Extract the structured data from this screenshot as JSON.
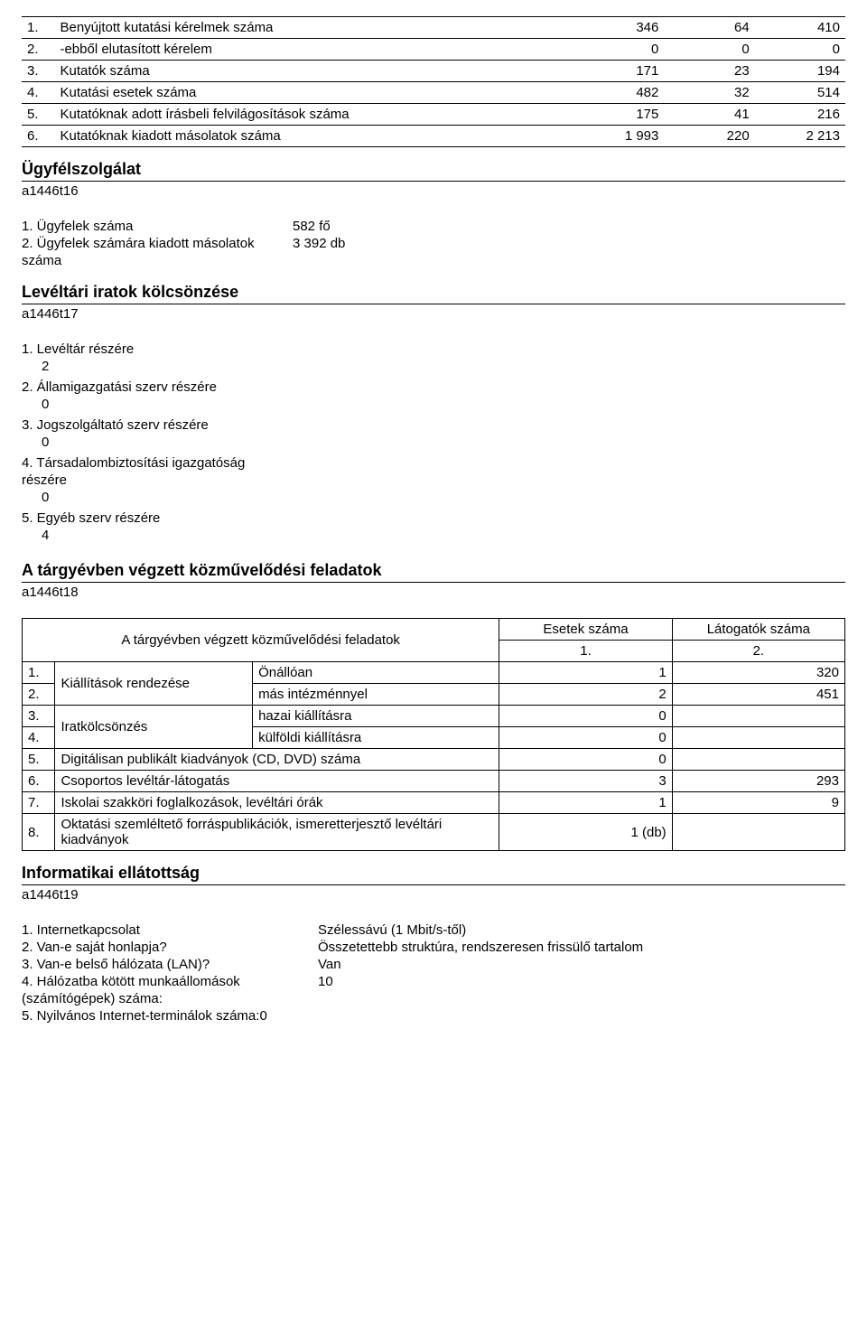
{
  "table1": {
    "rows": [
      {
        "idx": "1.",
        "label": "Benyújtott kutatási kérelmek száma",
        "c1": "346",
        "c2": "64",
        "c3": "410"
      },
      {
        "idx": "2.",
        "label": "-ebből elutasított kérelem",
        "c1": "0",
        "c2": "0",
        "c3": "0"
      },
      {
        "idx": "3.",
        "label": "Kutatók száma",
        "c1": "171",
        "c2": "23",
        "c3": "194"
      },
      {
        "idx": "4.",
        "label": "Kutatási esetek száma",
        "c1": "482",
        "c2": "32",
        "c3": "514"
      },
      {
        "idx": "5.",
        "label": "Kutatóknak adott írásbeli felvilágosítások száma",
        "c1": "175",
        "c2": "41",
        "c3": "216"
      },
      {
        "idx": "6.",
        "label": "Kutatóknak kiadott másolatok száma",
        "c1": "1 993",
        "c2": "220",
        "c3": "2 213"
      }
    ]
  },
  "sec_ugyfel": {
    "title": "Ügyfélszolgálat",
    "id": "a1446t16"
  },
  "ugyfel_kv": [
    {
      "label": "1. Ügyfelek száma",
      "mid": "",
      "val": "582 fő"
    },
    {
      "label": "2. Ügyfelek számára kiadott másolatok",
      "mid": "",
      "val": "3 392 db"
    },
    {
      "label": "száma",
      "mid": "",
      "val": ""
    }
  ],
  "sec_levelt": {
    "title": "Levéltári iratok kölcsönzése",
    "id": "a1446t17"
  },
  "levelt_list": [
    {
      "label": "1. Levéltár részére",
      "val": "2"
    },
    {
      "label": "2. Államigazgatási szerv részére",
      "val": "0"
    },
    {
      "label": "3. Jogszolgáltató szerv részére",
      "val": "0"
    },
    {
      "label": "4. Társadalombiztosítási igazgatóság",
      "val": ""
    },
    {
      "label": "részére",
      "val": "0",
      "no_indent": true
    },
    {
      "label": "5. Egyéb szerv részére",
      "val": "4"
    }
  ],
  "sec_kozm": {
    "title": "A tárgyévben végzett közművelődési feladatok",
    "id": "a1446t18"
  },
  "t2": {
    "header_main": "A tárgyévben végzett közművelődési feladatok",
    "header_c1": "Esetek száma",
    "header_c2": "Látogatók száma",
    "header_n1": "1.",
    "header_n2": "2.",
    "rows": [
      {
        "idx": "1.",
        "group": "Kiállítások rendezése",
        "sub": "Önállóan",
        "c1": "1",
        "c2": "320",
        "rowspan": 2
      },
      {
        "idx": "2.",
        "group": "",
        "sub": "más intézménnyel",
        "c1": "2",
        "c2": "451"
      },
      {
        "idx": "3.",
        "group": "Iratkölcsönzés",
        "sub": "hazai kiállításra",
        "c1": "0",
        "c2": "",
        "rowspan": 2
      },
      {
        "idx": "4.",
        "group": "",
        "sub": "külföldi kiállításra",
        "c1": "0",
        "c2": ""
      },
      {
        "idx": "5.",
        "full": "Digitálisan publikált kiadványok (CD, DVD) száma",
        "c1": "0",
        "c2": ""
      },
      {
        "idx": "6.",
        "full": "Csoportos levéltár-látogatás",
        "c1": "3",
        "c2": "293"
      },
      {
        "idx": "7.",
        "full": "Iskolai szakköri foglalkozások, levéltári órák",
        "c1": "1",
        "c2": "9"
      },
      {
        "idx": "8.",
        "full": "Oktatási szemléltető forráspublikációk, ismeretterjesztő levéltári kiadványok",
        "c1": "1 (db)",
        "c2": ""
      }
    ]
  },
  "sec_info": {
    "title": "Informatikai ellátottság",
    "id": "a1446t19"
  },
  "info_kv": [
    {
      "label": "1. Internetkapcsolat",
      "val": "Szélessávú (1 Mbit/s-től)"
    },
    {
      "label": "2. Van-e saját honlapja?",
      "val": "Összetettebb struktúra, rendszeresen frissülő tartalom"
    },
    {
      "label": "3. Van-e belső hálózata (LAN)?",
      "val": "Van"
    },
    {
      "label": "4. Hálózatba kötött munkaállomások",
      "val": "10"
    },
    {
      "label": "(számítógépek) száma:",
      "val": ""
    },
    {
      "label": "5. Nyilvános Internet-terminálok száma:0",
      "val": ""
    }
  ]
}
